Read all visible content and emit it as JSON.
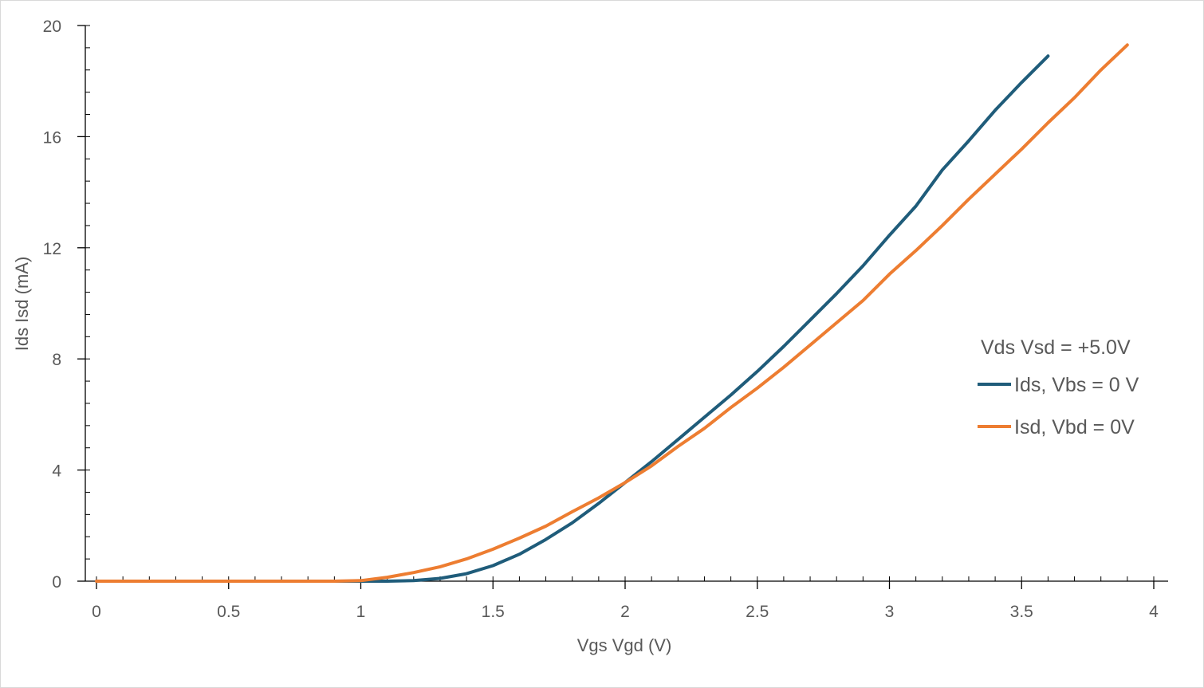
{
  "chart_data": {
    "type": "line",
    "xlabel": "Vgs   Vgd (V)",
    "ylabel": "Ids  Isd (mA)",
    "xlim": [
      0,
      4
    ],
    "ylim": [
      0,
      20
    ],
    "x_ticks": [
      0,
      0.5,
      1,
      1.5,
      2,
      2.5,
      3,
      3.5,
      4
    ],
    "x_tick_labels": [
      "0",
      "0.5",
      "1",
      "1.5",
      "2",
      "2.5",
      "3",
      "3.5",
      "4"
    ],
    "y_ticks": [
      0,
      4,
      8,
      12,
      16,
      20
    ],
    "y_tick_labels": [
      "0",
      "4",
      "8",
      "12",
      "16",
      "20"
    ],
    "x_minor_step": 0.1,
    "y_minor_step": 0.8,
    "grid": false,
    "legend": {
      "title": "Vds   Vsd = +5.0V",
      "position": "right"
    },
    "series": [
      {
        "name": "Ids, Vbs = 0 V",
        "color": "#1f5c7a",
        "x": [
          0,
          0.1,
          0.2,
          0.3,
          0.4,
          0.5,
          0.6,
          0.7,
          0.8,
          0.9,
          1.0,
          1.1,
          1.2,
          1.3,
          1.4,
          1.5,
          1.6,
          1.7,
          1.8,
          1.9,
          2.0,
          2.1,
          2.2,
          2.3,
          2.4,
          2.5,
          2.6,
          2.7,
          2.8,
          2.9,
          3.0,
          3.1,
          3.2,
          3.3,
          3.4,
          3.5,
          3.6
        ],
        "y": [
          0,
          0,
          0,
          0,
          0,
          0,
          0,
          0,
          0,
          0,
          0,
          0,
          0.02,
          0.1,
          0.27,
          0.56,
          0.97,
          1.5,
          2.1,
          2.8,
          3.55,
          4.3,
          5.1,
          5.9,
          6.7,
          7.55,
          8.45,
          9.4,
          10.35,
          11.35,
          12.45,
          13.5,
          14.8,
          15.85,
          16.95,
          17.95,
          18.9
        ]
      },
      {
        "name": "Isd, Vbd = 0V",
        "color": "#ed7d31",
        "x": [
          0,
          0.1,
          0.2,
          0.3,
          0.4,
          0.5,
          0.6,
          0.7,
          0.8,
          0.9,
          1.0,
          1.1,
          1.2,
          1.3,
          1.4,
          1.5,
          1.6,
          1.7,
          1.8,
          1.9,
          2.0,
          2.1,
          2.2,
          2.3,
          2.4,
          2.5,
          2.6,
          2.7,
          2.8,
          2.9,
          3.0,
          3.1,
          3.2,
          3.3,
          3.4,
          3.5,
          3.6,
          3.7,
          3.8,
          3.9
        ],
        "y": [
          0,
          0,
          0,
          0,
          0,
          0,
          0,
          0,
          0,
          0,
          0.02,
          0.14,
          0.31,
          0.52,
          0.8,
          1.15,
          1.55,
          1.98,
          2.5,
          3.0,
          3.55,
          4.15,
          4.85,
          5.5,
          6.25,
          6.95,
          7.7,
          8.5,
          9.3,
          10.1,
          11.05,
          11.9,
          12.8,
          13.75,
          14.65,
          15.55,
          16.5,
          17.4,
          18.4,
          19.3
        ]
      }
    ]
  }
}
